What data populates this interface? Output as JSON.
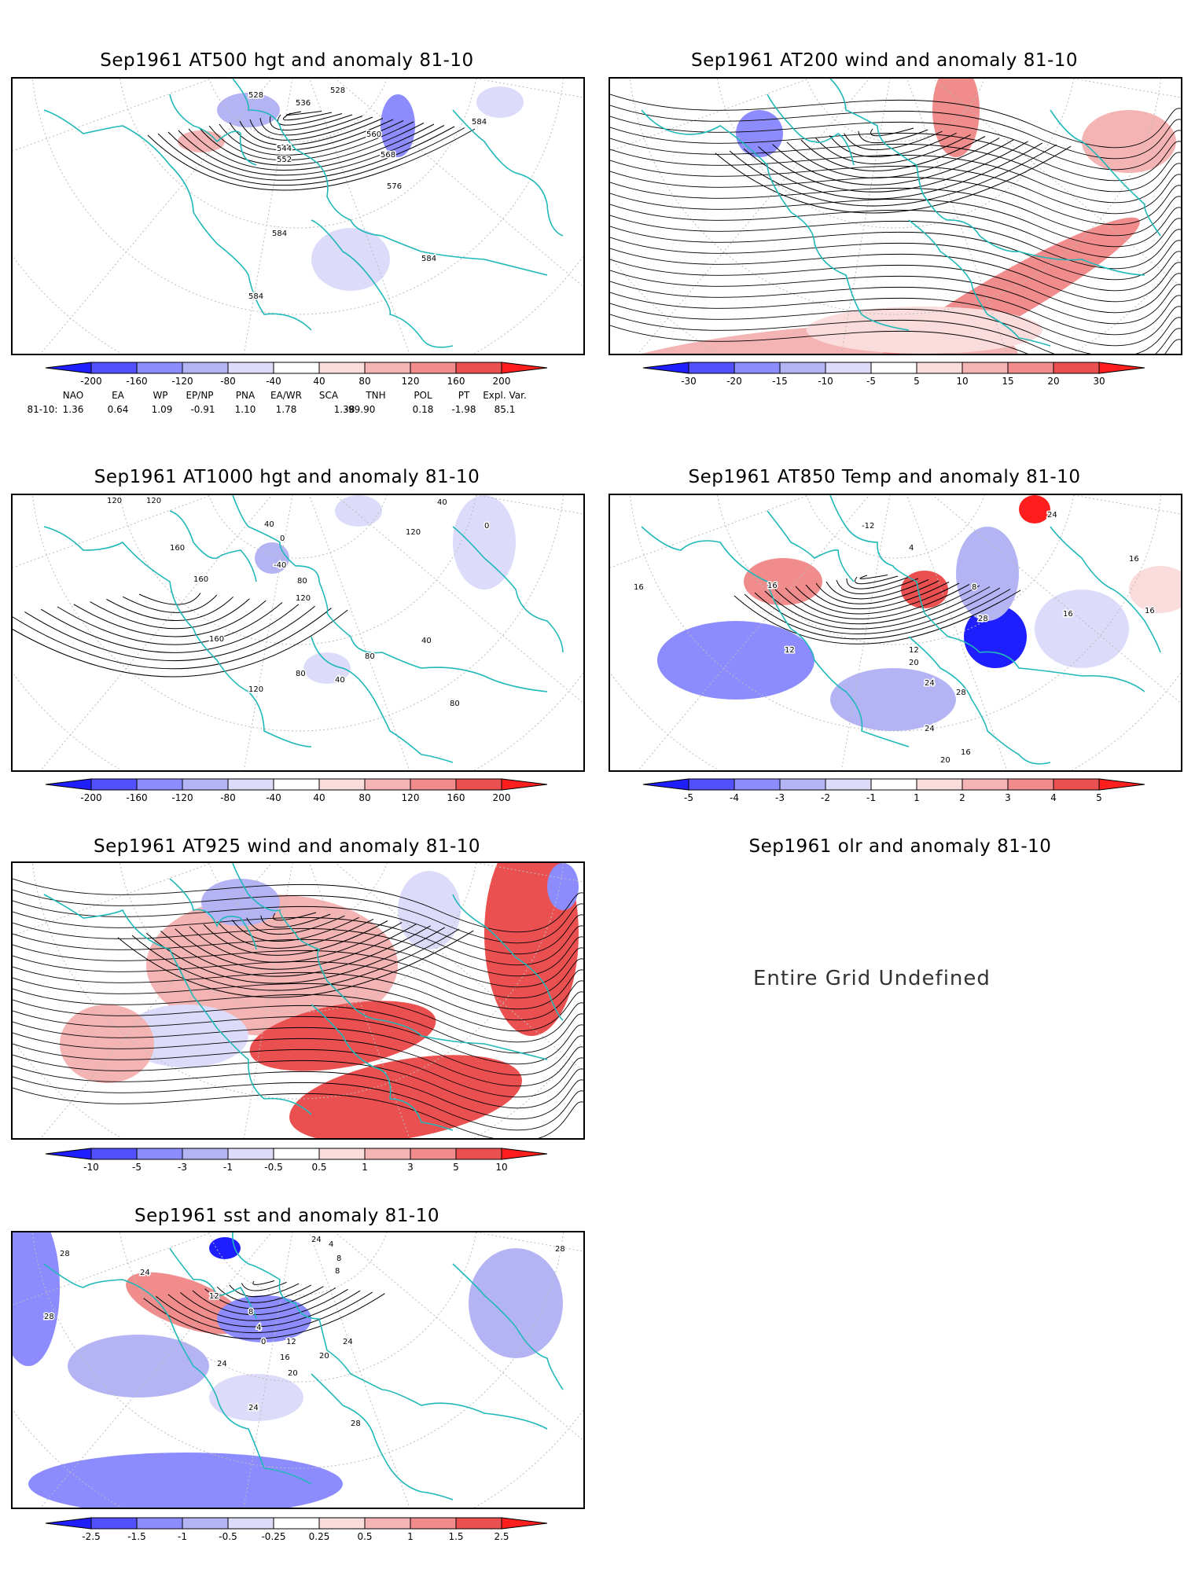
{
  "panels": [
    {
      "id": "p1",
      "title": "Sep1961 AT500 hgt and anomaly 81-10",
      "ticks": [
        "-200",
        "-160",
        "-120",
        "-80",
        "-40",
        "40",
        "80",
        "120",
        "160",
        "200"
      ],
      "contour_labels": [
        "528",
        "528",
        "536",
        "544",
        "552",
        "560",
        "568",
        "576",
        "584",
        "584",
        "584",
        "584"
      ]
    },
    {
      "id": "p2",
      "title": "Sep1961 AT200 wind and anomaly 81-10",
      "ticks": [
        "-30",
        "-20",
        "-15",
        "-10",
        "-5",
        "5",
        "10",
        "15",
        "20",
        "30"
      ]
    },
    {
      "id": "p3",
      "title": "Sep1961 AT1000 hgt and anomaly 81-10",
      "ticks": [
        "-200",
        "-160",
        "-120",
        "-80",
        "-40",
        "40",
        "80",
        "120",
        "160",
        "200"
      ],
      "contour_labels": [
        "120",
        "120",
        "160",
        "160",
        "40",
        "0",
        "-40",
        "80",
        "120",
        "40",
        "0",
        "120",
        "80",
        "120",
        "40",
        "160",
        "80",
        "40",
        "80"
      ]
    },
    {
      "id": "p4",
      "title": "Sep1961 AT850 Temp and anomaly 81-10",
      "ticks": [
        "-5",
        "-4",
        "-3",
        "-2",
        "-1",
        "1",
        "2",
        "3",
        "4",
        "5"
      ],
      "contour_labels": [
        "16",
        "16",
        "-12",
        "4",
        "8",
        "12",
        "20",
        "24",
        "28",
        "24",
        "20",
        "16",
        "12",
        "16",
        "28",
        "24",
        "16",
        "16"
      ]
    },
    {
      "id": "p5",
      "title": "Sep1961 AT925 wind and anomaly 81-10",
      "ticks": [
        "-10",
        "-5",
        "-3",
        "-1",
        "-0.5",
        "0.5",
        "1",
        "3",
        "5",
        "10"
      ]
    },
    {
      "id": "p6",
      "title": "Sep1961 olr and anomaly 81-10",
      "message": "Entire Grid Undefined"
    },
    {
      "id": "p7",
      "title": "Sep1961 sst and anomaly 81-10",
      "ticks": [
        "-2.5",
        "-1.5",
        "-1",
        "-0.5",
        "-0.25",
        "0.25",
        "0.5",
        "1",
        "1.5",
        "2.5"
      ],
      "contour_labels": [
        "28",
        "24",
        "28",
        "12",
        "8",
        "4",
        "0",
        "12",
        "16",
        "20",
        "20",
        "24",
        "24",
        "24",
        "28",
        "28",
        "24",
        "4",
        "8",
        "8"
      ]
    }
  ],
  "indices": {
    "header": [
      "NAO",
      "EA",
      "WP",
      "EP/NP",
      "PNA",
      "EA/WR",
      "SCA",
      "TNH",
      "POL",
      "PT",
      "Expl. Var."
    ],
    "row_label": "81-10:",
    "values": [
      "1.36",
      "0.64",
      "1.09",
      "-0.91",
      "1.10",
      "1.78",
      "1.38",
      "-99.90",
      "0.18",
      "-1.98",
      "85.1"
    ]
  },
  "colors": {
    "blues": [
      "#1e1eff",
      "#5050ff",
      "#8c8cff",
      "#b4b4f5",
      "#dcdcfa"
    ],
    "reds": [
      "#fadcdc",
      "#f5b4b4",
      "#f08c8c",
      "#eb5050",
      "#ff1e1e"
    ],
    "coast": "#20b8b8"
  }
}
